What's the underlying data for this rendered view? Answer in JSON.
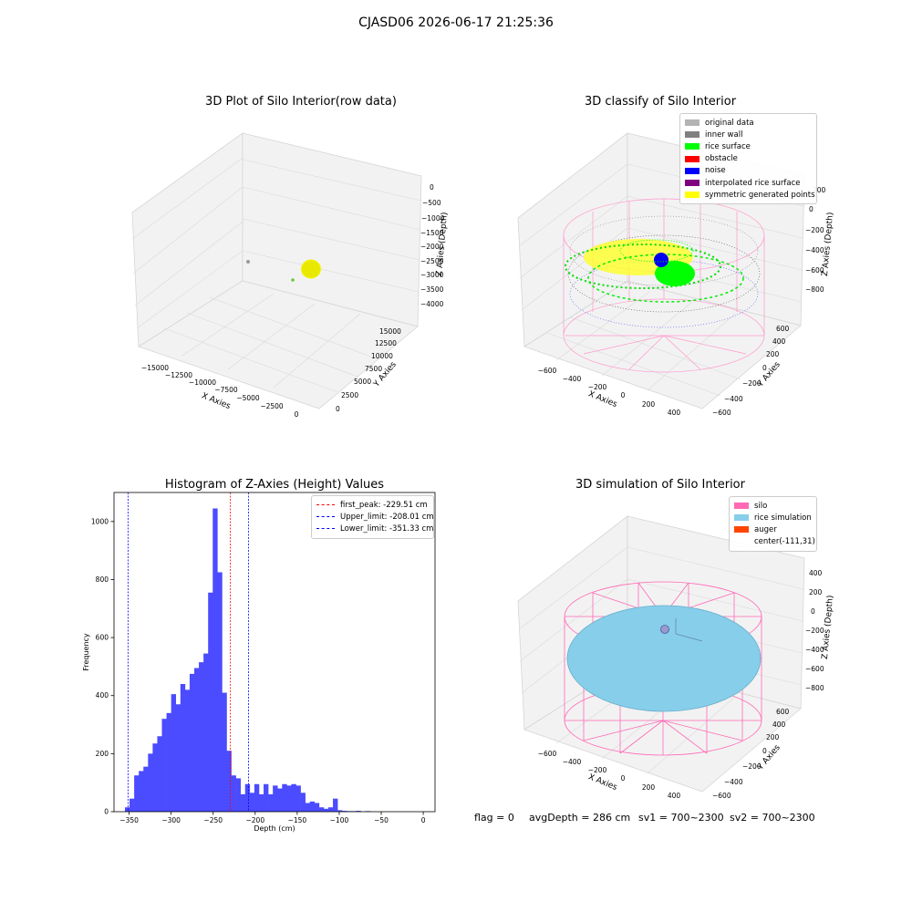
{
  "figure": {
    "suptitle": "CJASD06 2026-06-17 21:25:36",
    "footer": {
      "flag": "flag = 0",
      "avg": "avgDepth = 286 cm",
      "sv1": "sv1 = 700~2300",
      "sv2": "sv2 = 700~2300"
    }
  },
  "colors": {
    "histogram_bar": "#4b4bff",
    "first_peak_line": "#ff0000",
    "limit_lines": "#0000ff",
    "silo_wire": "#ff69b4",
    "rice_simulation": "#87ceeb",
    "auger": "#ff4500",
    "rice_surface": "#00ff00",
    "noise": "#0000ff",
    "symmetric": "#ffff00",
    "inner_wall": "#808080"
  },
  "chart_data": [
    {
      "type": "scatter",
      "title": "3D Plot of Silo Interior(row data)",
      "projection": "3d",
      "xlabel": "X Axies",
      "ylabel": "Y Axies",
      "zlabel": "Z Axies (Depth)",
      "x_ticks": [
        "−15000",
        "−12500",
        "−10000",
        "−7500",
        "−5000",
        "−2500",
        "0"
      ],
      "y_ticks": [
        "0",
        "2500",
        "5000",
        "7500",
        "10000",
        "12500",
        "15000"
      ],
      "z_ticks": [
        "0",
        "−500",
        "−1000",
        "−1500",
        "−2000",
        "−2500",
        "−3000",
        "−3500",
        "−4000"
      ],
      "points": [
        {
          "x": -15500,
          "y": 15500,
          "z": -2300,
          "color": "#999999"
        },
        {
          "x": -8000,
          "y": 8500,
          "z": -2800,
          "color": "#66cc33"
        },
        {
          "x": -120,
          "y": 30,
          "z": -286,
          "color": "#e8e800",
          "note": "dense cluster"
        }
      ]
    },
    {
      "type": "scatter",
      "title": "3D classify of Silo Interior",
      "projection": "3d",
      "xlabel": "X Axies",
      "ylabel": "Y Axies",
      "zlabel": "Z Axies (Depth)",
      "x_ticks": [
        "−600",
        "−400",
        "−200",
        "0",
        "200",
        "400"
      ],
      "y_ticks": [
        "−600",
        "−400",
        "−200",
        "0",
        "200",
        "400",
        "600"
      ],
      "z_ticks": [
        "200",
        "0",
        "−200",
        "−400",
        "−600",
        "−800"
      ],
      "legend": [
        {
          "label": "original data",
          "color": "#b3b3b3"
        },
        {
          "label": "inner wall",
          "color": "#808080"
        },
        {
          "label": "rice surface",
          "color": "#00ff00"
        },
        {
          "label": "obstacle",
          "color": "#ff0000"
        },
        {
          "label": "noise",
          "color": "#0000ff"
        },
        {
          "label": "interpolated rice surface",
          "color": "#800080"
        },
        {
          "label": "symmetric generated points",
          "color": "#ffff00"
        }
      ]
    },
    {
      "type": "bar",
      "title": "Histogram of Z-Axies (Height) Values",
      "xlabel": "Depth (cm)",
      "ylabel": "Frequency",
      "xlim": [
        -368,
        14
      ],
      "ylim": [
        0,
        1100
      ],
      "x_ticks": [
        -350,
        -300,
        -250,
        -200,
        -150,
        -100,
        -50,
        0
      ],
      "x_tick_labels": [
        "−350",
        "−300",
        "−250",
        "−200",
        "−150",
        "−100",
        "−50",
        "0"
      ],
      "y_ticks": [
        0,
        200,
        400,
        600,
        800,
        1000
      ],
      "bin_start": -355,
      "bin_width": 5.5,
      "values": [
        15,
        45,
        125,
        140,
        155,
        200,
        235,
        260,
        320,
        340,
        405,
        370,
        440,
        420,
        475,
        495,
        515,
        545,
        755,
        1045,
        825,
        410,
        210,
        125,
        115,
        60,
        95,
        65,
        95,
        60,
        95,
        60,
        90,
        80,
        95,
        90,
        95,
        90,
        65,
        30,
        35,
        30,
        15,
        10,
        15,
        45,
        5,
        3,
        2,
        2,
        3,
        0,
        2
      ],
      "vlines": [
        {
          "label": "first_peak: -229.51 cm",
          "x": -229.51,
          "color": "#ff0000"
        },
        {
          "label": "Upper_limit: -208.01 cm",
          "x": -208.01,
          "color": "#0000ff"
        },
        {
          "label": "Lower_limit: -351.33 cm",
          "x": -351.33,
          "color": "#0000ff"
        }
      ]
    },
    {
      "type": "scatter",
      "title": "3D simulation of Silo Interior",
      "projection": "3d",
      "xlabel": "X Axies",
      "ylabel": "Y Axies",
      "zlabel": "Z Axies (Depth)",
      "x_ticks": [
        "−600",
        "−400",
        "−200",
        "0",
        "200",
        "400"
      ],
      "y_ticks": [
        "−600",
        "−400",
        "−200",
        "0",
        "200",
        "400",
        "600"
      ],
      "z_ticks": [
        "400",
        "200",
        "0",
        "−200",
        "−400",
        "−600",
        "−800"
      ],
      "legend": [
        {
          "label": "silo",
          "color": "#ff69b4"
        },
        {
          "label": "rice simulation",
          "color": "#87ceeb"
        },
        {
          "label": "auger",
          "color": "#ff4500"
        },
        {
          "label": "center(-111,31)",
          "color": ""
        }
      ]
    }
  ]
}
